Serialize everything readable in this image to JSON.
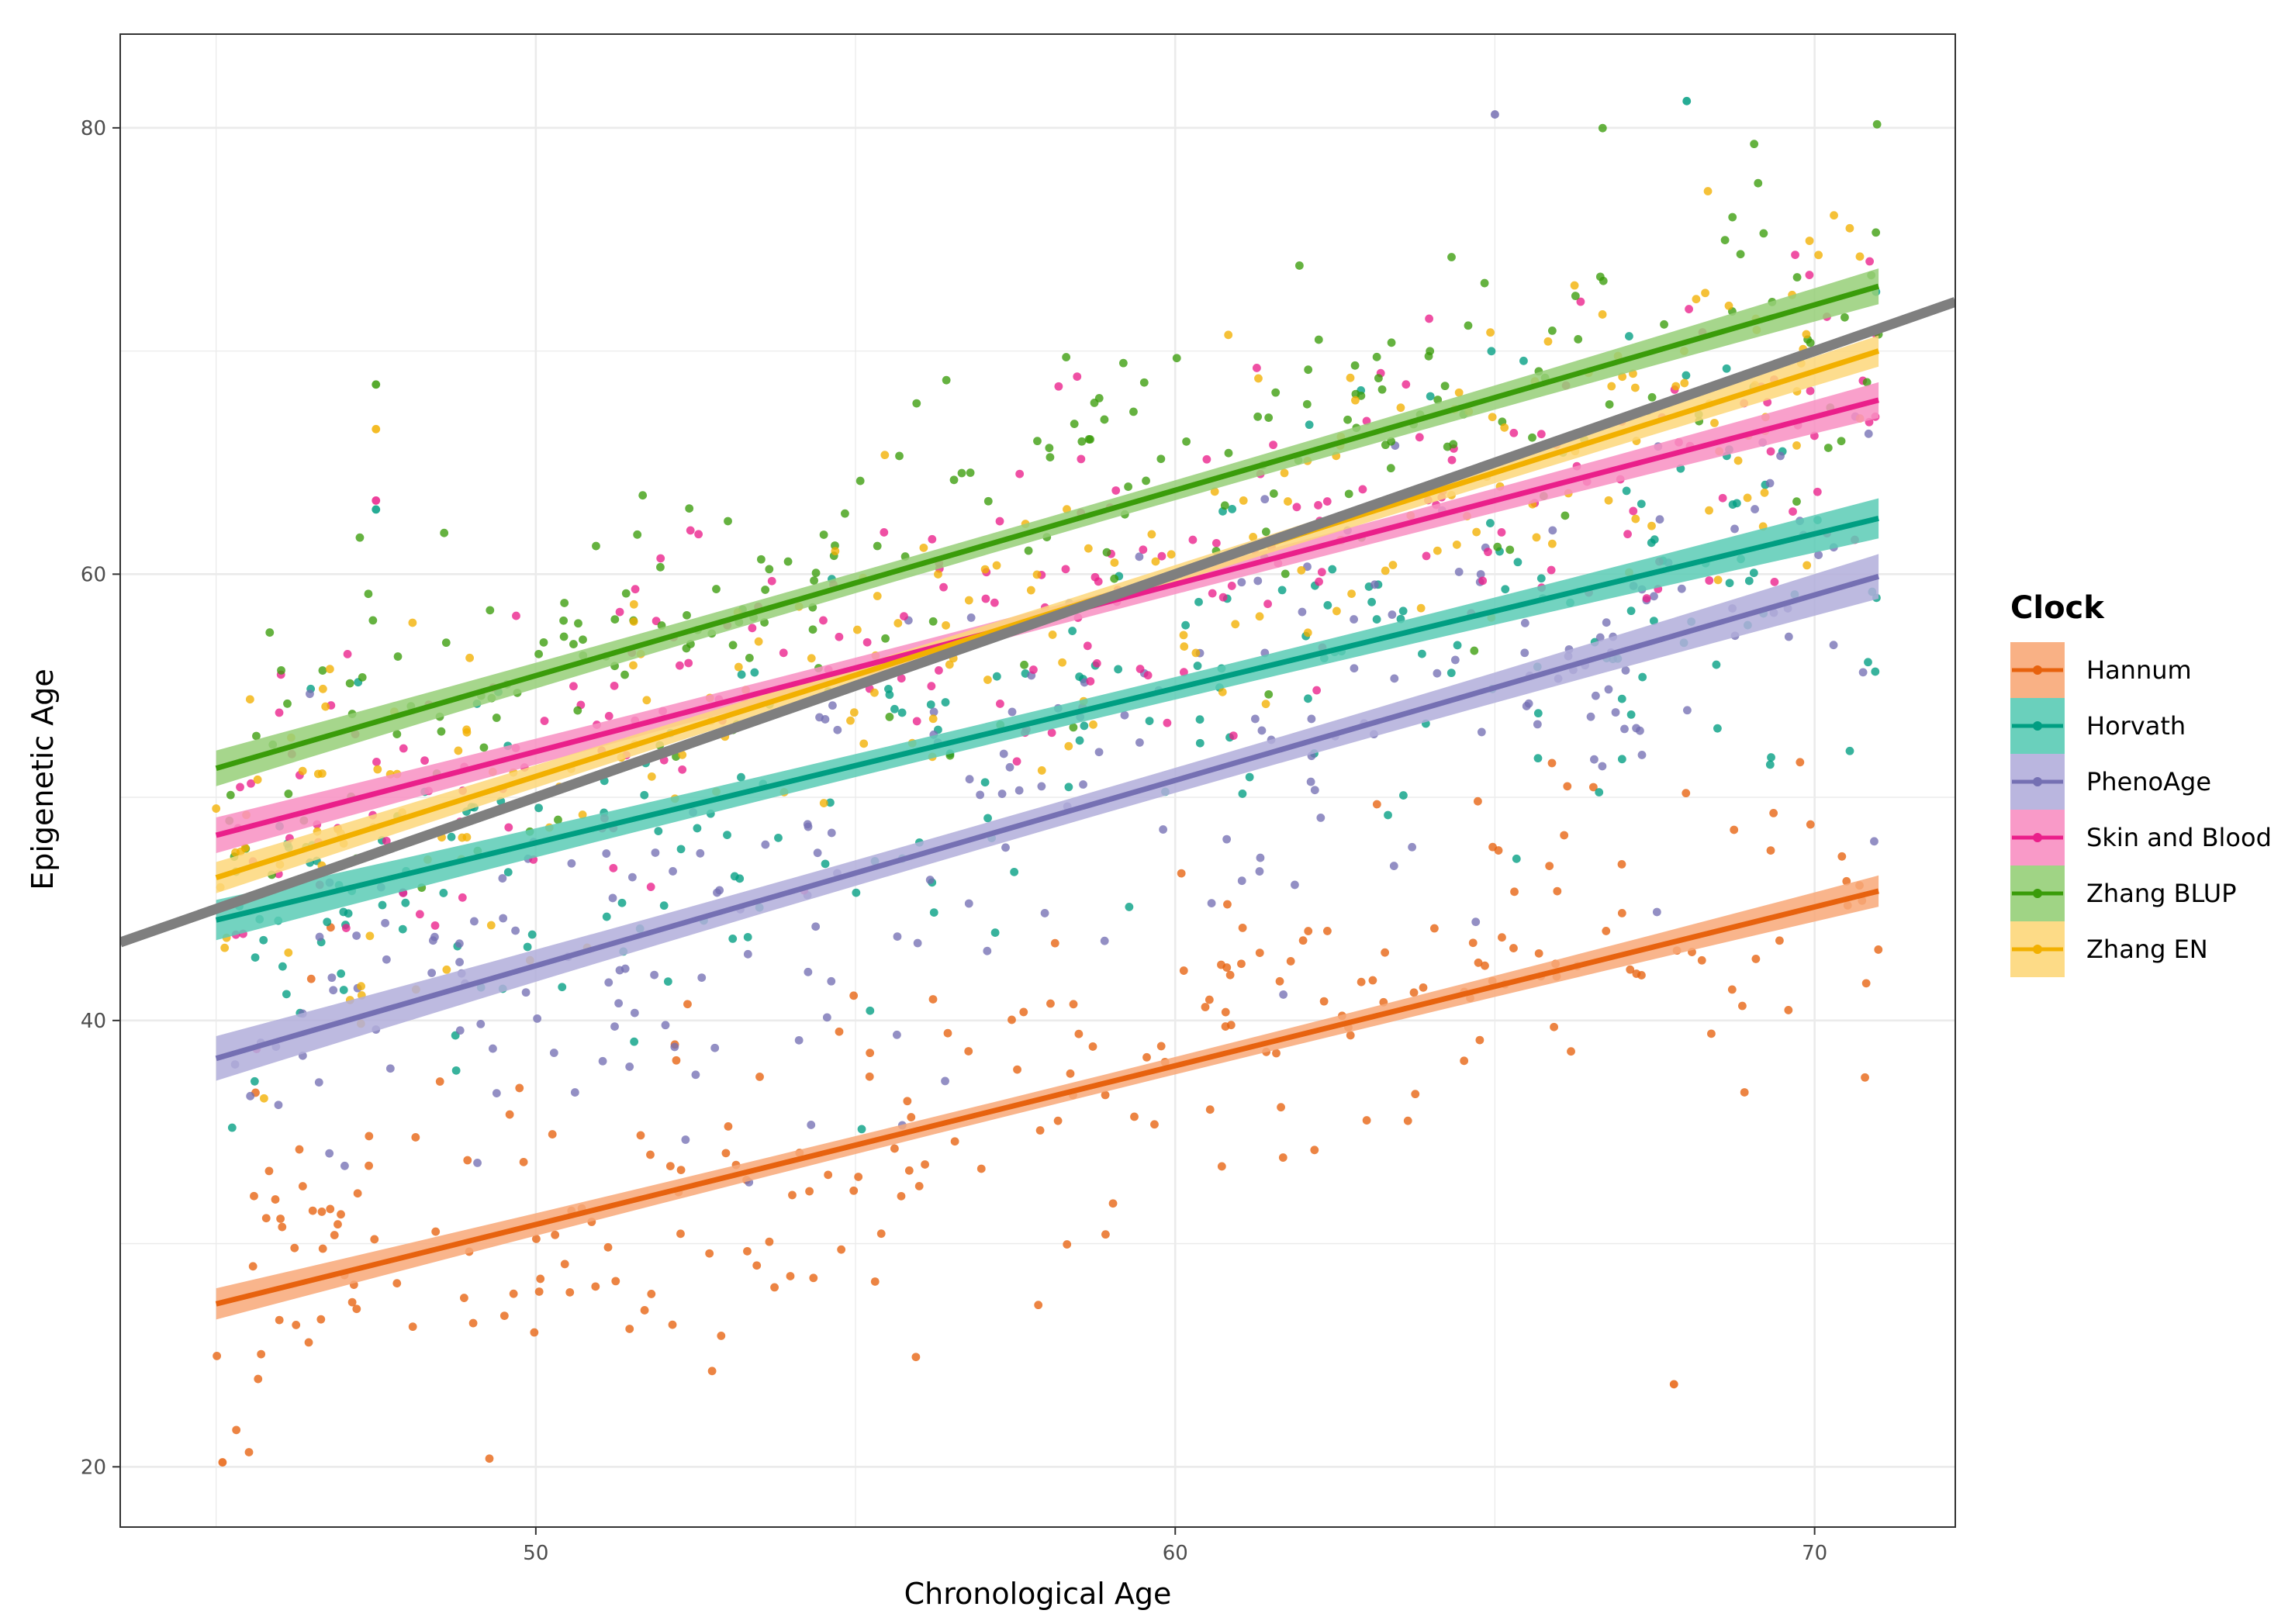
{
  "chart_data": {
    "type": "scatter",
    "title": "",
    "xlabel": "Chronological Age",
    "ylabel": "Epigenetic Age",
    "xlim": [
      43.5,
      72.2
    ],
    "ylim": [
      17.3,
      84.2
    ],
    "x_ticks": [
      50,
      60,
      70
    ],
    "y_ticks": [
      20,
      40,
      60,
      80
    ],
    "grid": true,
    "legend_title": "Clock",
    "legend_position": "right",
    "identity_line": {
      "color": "#7f7f7f",
      "slope": 1,
      "intercept": 0
    },
    "series": [
      {
        "name": "Hannum",
        "color": "#E7620E",
        "fill": "#F8A878",
        "fit": {
          "x": [
            45.0,
            71.0
          ],
          "y": [
            27.3,
            45.8
          ]
        },
        "ci": 0.7,
        "center": [
          [
            45.0,
            28.0
          ],
          [
            71.0,
            46.0
          ]
        ],
        "sd": 4.2,
        "n": 240,
        "seed": 11,
        "extras": [
          [
            45.1,
            20.2
          ],
          [
            67.8,
            23.7
          ]
        ]
      },
      {
        "name": "Horvath",
        "color": "#009E82",
        "fill": "#5ACBB5",
        "fit": {
          "x": [
            45.0,
            71.0
          ],
          "y": [
            44.5,
            62.5
          ]
        },
        "ci": 0.9,
        "center": [
          [
            45.0,
            44.5
          ],
          [
            71.0,
            62.5
          ]
        ],
        "sd": 4.5,
        "n": 220,
        "seed": 23,
        "extras": [
          [
            47.5,
            62.9
          ],
          [
            68.0,
            81.2
          ]
        ]
      },
      {
        "name": "PhenoAge",
        "color": "#7570B3",
        "fill": "#B2AEDB",
        "fit": {
          "x": [
            45.0,
            71.0
          ],
          "y": [
            38.3,
            59.9
          ]
        },
        "ci": 1.0,
        "center": [
          [
            45.0,
            38.3
          ],
          [
            71.0,
            59.9
          ]
        ],
        "sd": 5.0,
        "n": 230,
        "seed": 37,
        "extras": [
          [
            65.0,
            80.6
          ]
        ]
      },
      {
        "name": "Skin and Blood",
        "color": "#EA1F8A",
        "fill": "#F88FC2",
        "fit": {
          "x": [
            45.0,
            71.0
          ],
          "y": [
            48.3,
            67.8
          ]
        },
        "ci": 0.8,
        "center": [
          [
            45.0,
            48.3
          ],
          [
            71.0,
            67.8
          ]
        ],
        "sd": 4.0,
        "n": 220,
        "seed": 41,
        "extras": [
          [
            47.5,
            63.3
          ]
        ]
      },
      {
        "name": "Zhang BLUP",
        "color": "#3A9C0A",
        "fill": "#96CF78",
        "fit": {
          "x": [
            45.0,
            71.0
          ],
          "y": [
            51.3,
            72.9
          ]
        },
        "ci": 0.8,
        "center": [
          [
            45.0,
            51.3
          ],
          [
            71.0,
            72.9
          ]
        ],
        "sd": 3.9,
        "n": 230,
        "seed": 53,
        "extras": [
          [
            47.5,
            68.5
          ]
        ]
      },
      {
        "name": "Zhang EN",
        "color": "#F2B000",
        "fill": "#FDD77A",
        "fit": {
          "x": [
            45.0,
            71.0
          ],
          "y": [
            46.4,
            70.0
          ]
        },
        "ci": 0.7,
        "center": [
          [
            45.0,
            46.6
          ],
          [
            71.0,
            70.0
          ]
        ],
        "sd": 3.7,
        "n": 220,
        "seed": 67,
        "extras": [
          [
            47.5,
            66.5
          ]
        ]
      }
    ]
  }
}
